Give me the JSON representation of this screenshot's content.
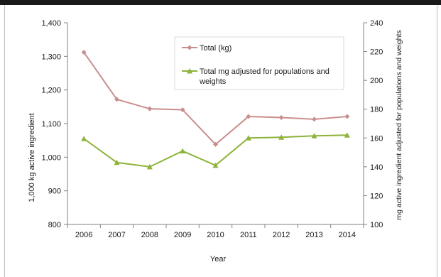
{
  "chart_data": {
    "type": "line",
    "categories": [
      "2006",
      "2007",
      "2008",
      "2009",
      "2010",
      "2011",
      "2012",
      "2013",
      "2014"
    ],
    "xlabel": "Year",
    "ylabel": "1,000 kg active ingredient",
    "y2label": "mg active ingredient adjusted for populations and weights",
    "ylim": [
      800,
      1400
    ],
    "y2lim": [
      100,
      240
    ],
    "yticks": [
      "800",
      "900",
      "1,000",
      "1,100",
      "1,200",
      "1,300",
      "1,400"
    ],
    "y2ticks": [
      "100",
      "120",
      "140",
      "160",
      "180",
      "200",
      "220",
      "240"
    ],
    "legend_position": "top-right",
    "grid": false,
    "series": [
      {
        "name": "Total (kg)",
        "axis": "left",
        "color": "#c98e8e",
        "marker": "diamond",
        "values": [
          1312,
          1172,
          1144,
          1141,
          1038,
          1121,
          1118,
          1113,
          1121
        ]
      },
      {
        "name": "Total mg adjusted for populations and weights",
        "axis": "right",
        "color": "#8db33a",
        "marker": "triangle",
        "values": [
          159.5,
          143,
          140,
          151,
          141,
          160,
          160.5,
          161.5,
          162
        ]
      }
    ]
  }
}
